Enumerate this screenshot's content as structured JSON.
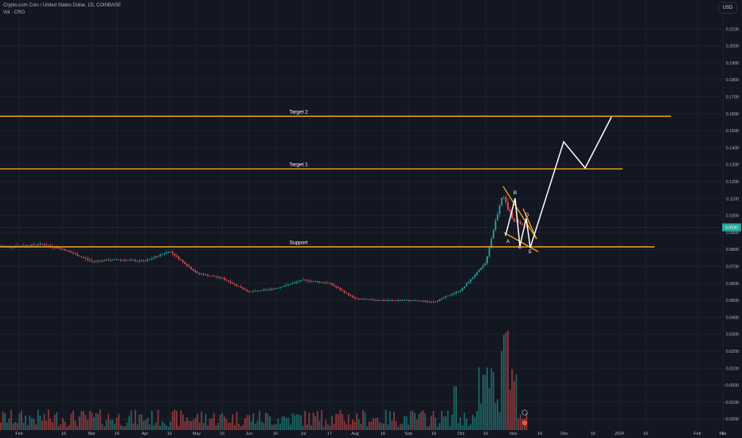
{
  "header": {
    "symbol_line": "Crypto.com Coin / United States Dollar, 1D, COINBASE",
    "volume_line": "Vol · CRO",
    "currency_button": "USD"
  },
  "colors": {
    "background": "#131722",
    "grid": "#1e222d",
    "axis_text": "#b2b5be",
    "up": "#26a69a",
    "down": "#ef5350",
    "level_line": "#f5a623",
    "projection": "#ffffff",
    "price_badge": "#26a69a"
  },
  "chart_data": {
    "type": "candlestick",
    "price_axis": {
      "ticks": [
        "0.2100",
        "0.2000",
        "0.1900",
        "0.1800",
        "0.1700",
        "0.1600",
        "0.1500",
        "0.1400",
        "0.1300",
        "0.1200",
        "0.1100",
        "0.1000",
        "0.0900",
        "0.0800",
        "0.0700",
        "0.0600",
        "0.0500",
        "0.0400",
        "0.0300",
        "0.0200",
        "0.0100",
        "−0.0000",
        "−0.0100",
        "−0.0200"
      ],
      "values": [
        0.21,
        0.2,
        0.19,
        0.18,
        0.17,
        0.16,
        0.15,
        0.14,
        0.13,
        0.12,
        0.11,
        0.1,
        0.09,
        0.08,
        0.07,
        0.06,
        0.05,
        0.04,
        0.03,
        0.02,
        0.01,
        0.0,
        -0.01,
        -0.02
      ],
      "current_price_label": "0.0930",
      "current_price": 0.093
    },
    "time_axis": {
      "labels": [
        "Feb",
        "16",
        "Mar",
        "16",
        "Apr",
        "16",
        "May",
        "16",
        "Jun",
        "16",
        "Jul",
        "17",
        "Aug",
        "16",
        "Sep",
        "16",
        "Oct",
        "16",
        "Nov",
        "16",
        "Dec",
        "16",
        "2024",
        "16",
        "Feb",
        "Mar",
        "1"
      ]
    },
    "levels": [
      {
        "label": "Target 2",
        "price": 0.1585
      },
      {
        "label": "Target 1",
        "price": 0.1275
      },
      {
        "label": "Support",
        "price": 0.0815
      }
    ],
    "wave_labels": [
      "A",
      "B",
      "C",
      "D",
      "E"
    ],
    "price_path": [
      {
        "date": "Feb 01",
        "price": 0.082
      },
      {
        "date": "Feb 16",
        "price": 0.083
      },
      {
        "date": "Mar 01",
        "price": 0.08
      },
      {
        "date": "Mar 16",
        "price": 0.073
      },
      {
        "date": "Apr 01",
        "price": 0.074
      },
      {
        "date": "Apr 16",
        "price": 0.073
      },
      {
        "date": "May 01",
        "price": 0.079
      },
      {
        "date": "May 16",
        "price": 0.066
      },
      {
        "date": "Jun 01",
        "price": 0.063
      },
      {
        "date": "Jun 16",
        "price": 0.055
      },
      {
        "date": "Jul 01",
        "price": 0.057
      },
      {
        "date": "Jul 17",
        "price": 0.062
      },
      {
        "date": "Aug 01",
        "price": 0.06
      },
      {
        "date": "Aug 16",
        "price": 0.051
      },
      {
        "date": "Sep 01",
        "price": 0.05
      },
      {
        "date": "Sep 16",
        "price": 0.05
      },
      {
        "date": "Oct 01",
        "price": 0.049
      },
      {
        "date": "Oct 16",
        "price": 0.056
      },
      {
        "date": "Nov 01",
        "price": 0.072
      },
      {
        "date": "Nov 11",
        "price": 0.112
      },
      {
        "date": "Nov 16",
        "price": 0.098
      },
      {
        "date": "Nov 22",
        "price": 0.093
      }
    ],
    "volume_scale_note": "volume bars share bottom pane"
  }
}
